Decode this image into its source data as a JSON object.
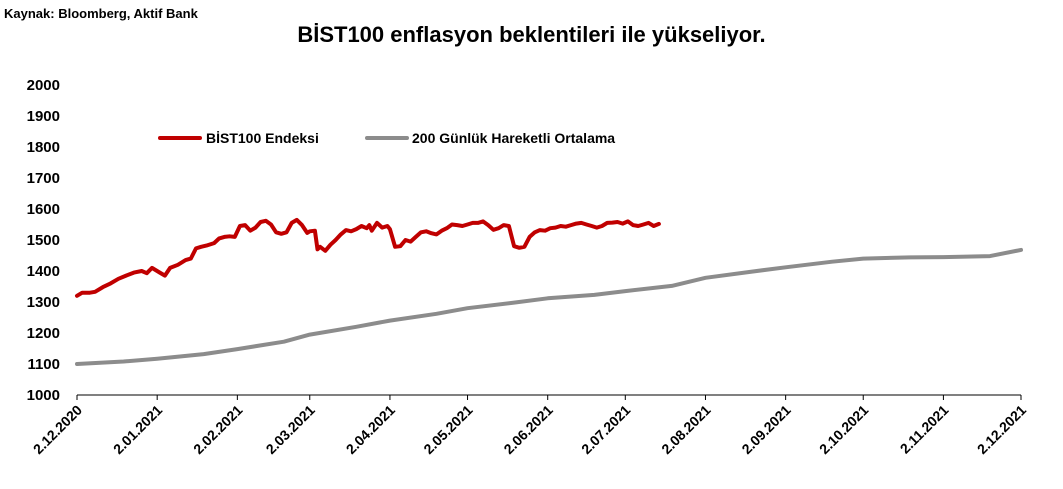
{
  "source": "Kaynak: Bloomberg, Aktif Bank",
  "title": "BİST100 enflasyon beklentileri ile yükseliyor.",
  "chart_data": {
    "type": "line",
    "title": "BİST100 enflasyon beklentileri ile yükseliyor.",
    "xlabel": "",
    "ylabel": "",
    "ylim": [
      1000,
      2000
    ],
    "y_ticks": [
      1000,
      1100,
      1200,
      1300,
      1400,
      1500,
      1600,
      1700,
      1800,
      1900,
      2000
    ],
    "x_range": [
      "2020-12-02",
      "2021-12-02"
    ],
    "x_tick_labels": [
      "2.12.2020",
      "2.01.2021",
      "2.02.2021",
      "2.03.2021",
      "2.04.2021",
      "2.05.2021",
      "2.06.2021",
      "2.07.2021",
      "2.08.2021",
      "2.09.2021",
      "2.10.2021",
      "2.11.2021",
      "2.12.2021"
    ],
    "x_tick_dates": [
      "2020-12-02",
      "2021-01-02",
      "2021-02-02",
      "2021-03-02",
      "2021-04-02",
      "2021-05-02",
      "2021-06-02",
      "2021-07-02",
      "2021-08-02",
      "2021-09-02",
      "2021-10-02",
      "2021-11-02",
      "2021-12-02"
    ],
    "grid": false,
    "legend_position": "top-left",
    "series": [
      {
        "name": "BİST100 Endeksi",
        "color": "#c00000",
        "points": [
          [
            "2020-12-02",
            1320
          ],
          [
            "2020-12-04",
            1330
          ],
          [
            "2020-12-07",
            1330
          ],
          [
            "2020-12-09",
            1333
          ],
          [
            "2020-12-12",
            1348
          ],
          [
            "2020-12-15",
            1360
          ],
          [
            "2020-12-18",
            1375
          ],
          [
            "2020-12-21",
            1385
          ],
          [
            "2020-12-24",
            1395
          ],
          [
            "2020-12-27",
            1400
          ],
          [
            "2020-12-29",
            1393
          ],
          [
            "2020-12-31",
            1410
          ],
          [
            "2021-01-03",
            1395
          ],
          [
            "2021-01-05",
            1385
          ],
          [
            "2021-01-07",
            1410
          ],
          [
            "2021-01-10",
            1420
          ],
          [
            "2021-01-13",
            1435
          ],
          [
            "2021-01-15",
            1440
          ],
          [
            "2021-01-17",
            1473
          ],
          [
            "2021-01-19",
            1478
          ],
          [
            "2021-01-21",
            1482
          ],
          [
            "2021-01-24",
            1490
          ],
          [
            "2021-01-26",
            1505
          ],
          [
            "2021-01-28",
            1510
          ],
          [
            "2021-01-30",
            1512
          ],
          [
            "2021-02-01",
            1510
          ],
          [
            "2021-02-03",
            1545
          ],
          [
            "2021-02-05",
            1548
          ],
          [
            "2021-02-07",
            1530
          ],
          [
            "2021-02-09",
            1540
          ],
          [
            "2021-02-11",
            1558
          ],
          [
            "2021-02-13",
            1562
          ],
          [
            "2021-02-15",
            1550
          ],
          [
            "2021-02-17",
            1525
          ],
          [
            "2021-02-19",
            1520
          ],
          [
            "2021-02-21",
            1525
          ],
          [
            "2021-02-23",
            1555
          ],
          [
            "2021-02-25",
            1565
          ],
          [
            "2021-02-27",
            1548
          ],
          [
            "2021-03-01",
            1523
          ],
          [
            "2021-03-02",
            1528
          ],
          [
            "2021-03-04",
            1530
          ],
          [
            "2021-03-05",
            1470
          ],
          [
            "2021-03-06",
            1478
          ],
          [
            "2021-03-08",
            1465
          ],
          [
            "2021-03-10",
            1485
          ],
          [
            "2021-03-12",
            1500
          ],
          [
            "2021-03-14",
            1518
          ],
          [
            "2021-03-16",
            1532
          ],
          [
            "2021-03-18",
            1528
          ],
          [
            "2021-03-20",
            1535
          ],
          [
            "2021-03-22",
            1545
          ],
          [
            "2021-03-24",
            1538
          ],
          [
            "2021-03-25",
            1548
          ],
          [
            "2021-03-26",
            1530
          ],
          [
            "2021-03-28",
            1555
          ],
          [
            "2021-03-30",
            1540
          ],
          [
            "2021-04-01",
            1545
          ],
          [
            "2021-04-02",
            1535
          ],
          [
            "2021-04-04",
            1478
          ],
          [
            "2021-04-06",
            1480
          ],
          [
            "2021-04-08",
            1500
          ],
          [
            "2021-04-10",
            1495
          ],
          [
            "2021-04-12",
            1510
          ],
          [
            "2021-04-14",
            1525
          ],
          [
            "2021-04-16",
            1528
          ],
          [
            "2021-04-18",
            1522
          ],
          [
            "2021-04-20",
            1518
          ],
          [
            "2021-04-22",
            1530
          ],
          [
            "2021-04-24",
            1538
          ],
          [
            "2021-04-26",
            1550
          ],
          [
            "2021-04-28",
            1548
          ],
          [
            "2021-04-30",
            1545
          ],
          [
            "2021-05-02",
            1550
          ],
          [
            "2021-05-04",
            1555
          ],
          [
            "2021-05-06",
            1555
          ],
          [
            "2021-05-08",
            1560
          ],
          [
            "2021-05-10",
            1548
          ],
          [
            "2021-05-12",
            1533
          ],
          [
            "2021-05-14",
            1538
          ],
          [
            "2021-05-16",
            1548
          ],
          [
            "2021-05-18",
            1545
          ],
          [
            "2021-05-20",
            1480
          ],
          [
            "2021-05-22",
            1475
          ],
          [
            "2021-05-24",
            1478
          ],
          [
            "2021-05-26",
            1510
          ],
          [
            "2021-05-28",
            1525
          ],
          [
            "2021-05-30",
            1532
          ],
          [
            "2021-06-01",
            1530
          ],
          [
            "2021-06-03",
            1538
          ],
          [
            "2021-06-05",
            1540
          ],
          [
            "2021-06-07",
            1545
          ],
          [
            "2021-06-09",
            1543
          ],
          [
            "2021-06-11",
            1548
          ],
          [
            "2021-06-13",
            1553
          ],
          [
            "2021-06-15",
            1555
          ],
          [
            "2021-06-17",
            1550
          ],
          [
            "2021-06-19",
            1545
          ],
          [
            "2021-06-21",
            1540
          ],
          [
            "2021-06-23",
            1545
          ],
          [
            "2021-06-25",
            1555
          ],
          [
            "2021-06-27",
            1556
          ],
          [
            "2021-06-29",
            1558
          ],
          [
            "2021-07-01",
            1553
          ],
          [
            "2021-07-03",
            1560
          ],
          [
            "2021-07-05",
            1548
          ],
          [
            "2021-07-07",
            1545
          ],
          [
            "2021-07-09",
            1550
          ],
          [
            "2021-07-11",
            1555
          ],
          [
            "2021-07-13",
            1545
          ],
          [
            "2021-07-15",
            1552
          ]
        ]
      },
      {
        "name": "200 Günlük Hareketli Ortalama",
        "color": "#8c8c8c",
        "points": [
          [
            "2020-12-02",
            1100
          ],
          [
            "2020-12-20",
            1108
          ],
          [
            "2021-01-02",
            1117
          ],
          [
            "2021-01-20",
            1132
          ],
          [
            "2021-02-02",
            1148
          ],
          [
            "2021-02-20",
            1172
          ],
          [
            "2021-03-02",
            1195
          ],
          [
            "2021-03-20",
            1220
          ],
          [
            "2021-04-02",
            1240
          ],
          [
            "2021-04-20",
            1262
          ],
          [
            "2021-05-02",
            1280
          ],
          [
            "2021-05-20",
            1298
          ],
          [
            "2021-06-02",
            1312
          ],
          [
            "2021-06-20",
            1323
          ],
          [
            "2021-07-02",
            1335
          ],
          [
            "2021-07-20",
            1352
          ],
          [
            "2021-08-02",
            1378
          ],
          [
            "2021-08-20",
            1398
          ],
          [
            "2021-09-02",
            1412
          ],
          [
            "2021-09-20",
            1430
          ],
          [
            "2021-10-02",
            1440
          ],
          [
            "2021-10-20",
            1444
          ],
          [
            "2021-11-02",
            1445
          ],
          [
            "2021-11-20",
            1448
          ],
          [
            "2021-12-02",
            1468
          ]
        ]
      }
    ]
  }
}
